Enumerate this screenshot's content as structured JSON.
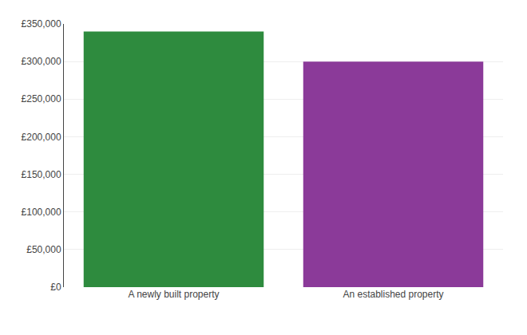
{
  "chart_data": {
    "type": "bar",
    "categories": [
      "A newly built property",
      "An established property"
    ],
    "values": [
      340000,
      300000
    ],
    "colors": [
      "#2e8b3e",
      "#8b3a99"
    ],
    "ylim": [
      0,
      350000
    ],
    "yticks": [
      {
        "value": 0,
        "label": "£0"
      },
      {
        "value": 50000,
        "label": "£50,000"
      },
      {
        "value": 100000,
        "label": "£100,000"
      },
      {
        "value": 150000,
        "label": "£150,000"
      },
      {
        "value": 200000,
        "label": "£200,000"
      },
      {
        "value": 250000,
        "label": "£250,000"
      },
      {
        "value": 300000,
        "label": "£300,000"
      },
      {
        "value": 350000,
        "label": "£350,000"
      }
    ],
    "grid": true
  }
}
